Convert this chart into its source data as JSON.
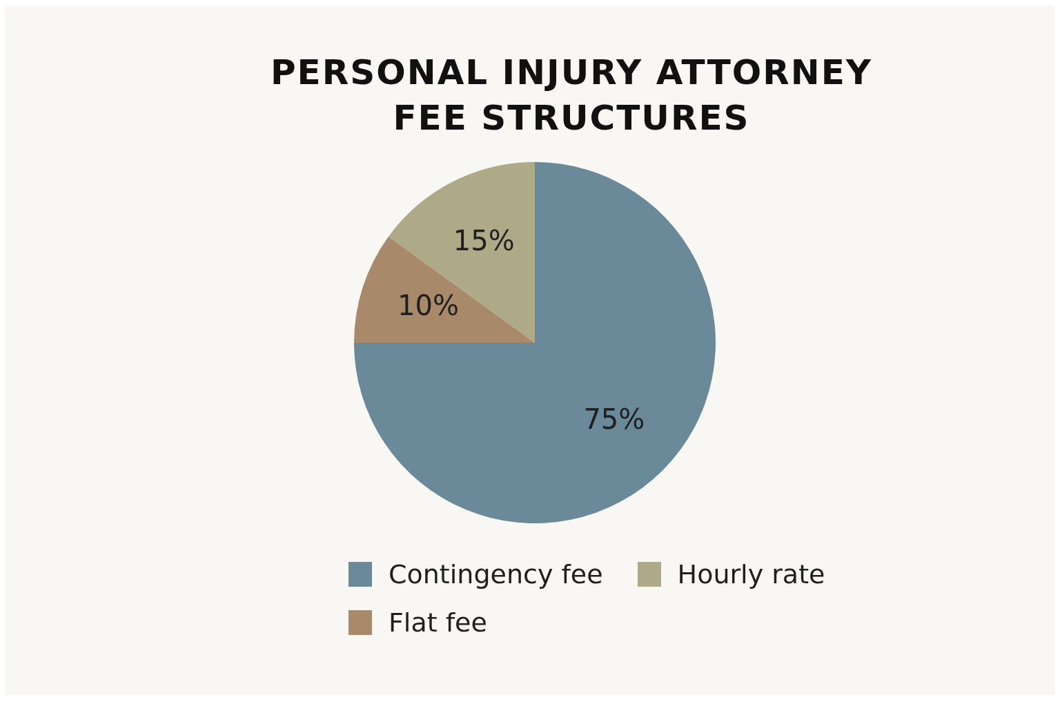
{
  "chart_data": {
    "type": "pie",
    "title": "PERSONAL INJURY ATTORNEY FEE STRUCTURES",
    "categories": [
      "Contingency fee",
      "Flat fee",
      "Hourly rate"
    ],
    "values": [
      75,
      10,
      15
    ],
    "colors": [
      "#6b8a99",
      "#a88a6a",
      "#aeaa88"
    ],
    "value_labels": [
      "75%",
      "10%",
      "15%"
    ],
    "legend": "bottom"
  }
}
